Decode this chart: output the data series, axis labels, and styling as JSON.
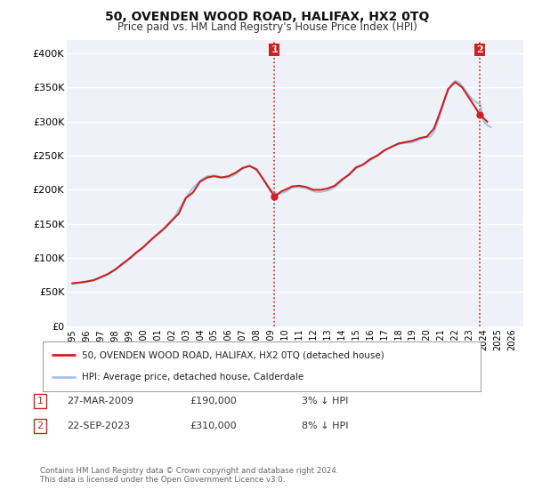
{
  "title": "50, OVENDEN WOOD ROAD, HALIFAX, HX2 0TQ",
  "subtitle": "Price paid vs. HM Land Registry's House Price Index (HPI)",
  "ylabel_ticks": [
    "£0",
    "£50K",
    "£100K",
    "£150K",
    "£200K",
    "£250K",
    "£300K",
    "£350K",
    "£400K"
  ],
  "ytick_values": [
    0,
    50000,
    100000,
    150000,
    200000,
    250000,
    300000,
    350000,
    400000
  ],
  "ylim": [
    0,
    420000
  ],
  "xlim_start": 1994.6,
  "xlim_end": 2026.8,
  "x_ticks": [
    1995,
    1996,
    1997,
    1998,
    1999,
    2000,
    2001,
    2002,
    2003,
    2004,
    2005,
    2006,
    2007,
    2008,
    2009,
    2010,
    2011,
    2012,
    2013,
    2014,
    2015,
    2016,
    2017,
    2018,
    2019,
    2020,
    2021,
    2022,
    2023,
    2024,
    2025,
    2026
  ],
  "legend_line1": "50, OVENDEN WOOD ROAD, HALIFAX, HX2 0TQ (detached house)",
  "legend_line2": "HPI: Average price, detached house, Calderdale",
  "marker1_date": "27-MAR-2009",
  "marker1_price": "£190,000",
  "marker1_hpi": "3% ↓ HPI",
  "marker2_date": "22-SEP-2023",
  "marker2_price": "£310,000",
  "marker2_hpi": "8% ↓ HPI",
  "footer_line1": "Contains HM Land Registry data © Crown copyright and database right 2024.",
  "footer_line2": "This data is licensed under the Open Government Licence v3.0.",
  "hpi_color": "#a8c4e0",
  "price_color": "#cc2222",
  "vline_color": "#cc2222",
  "bg_color": "#eef2f8",
  "grid_color": "#ffffff",
  "hpi_data_x": [
    1995.0,
    1995.25,
    1995.5,
    1995.75,
    1996.0,
    1996.25,
    1996.5,
    1996.75,
    1997.0,
    1997.25,
    1997.5,
    1997.75,
    1998.0,
    1998.25,
    1998.5,
    1998.75,
    1999.0,
    1999.25,
    1999.5,
    1999.75,
    2000.0,
    2000.25,
    2000.5,
    2000.75,
    2001.0,
    2001.25,
    2001.5,
    2001.75,
    2002.0,
    2002.25,
    2002.5,
    2002.75,
    2003.0,
    2003.25,
    2003.5,
    2003.75,
    2004.0,
    2004.25,
    2004.5,
    2004.75,
    2005.0,
    2005.25,
    2005.5,
    2005.75,
    2006.0,
    2006.25,
    2006.5,
    2006.75,
    2007.0,
    2007.25,
    2007.5,
    2007.75,
    2008.0,
    2008.25,
    2008.5,
    2008.75,
    2009.0,
    2009.25,
    2009.5,
    2009.75,
    2010.0,
    2010.25,
    2010.5,
    2010.75,
    2011.0,
    2011.25,
    2011.5,
    2011.75,
    2012.0,
    2012.25,
    2012.5,
    2012.75,
    2013.0,
    2013.25,
    2013.5,
    2013.75,
    2014.0,
    2014.25,
    2014.5,
    2014.75,
    2015.0,
    2015.25,
    2015.5,
    2015.75,
    2016.0,
    2016.25,
    2016.5,
    2016.75,
    2017.0,
    2017.25,
    2017.5,
    2017.75,
    2018.0,
    2018.25,
    2018.5,
    2018.75,
    2019.0,
    2019.25,
    2019.5,
    2019.75,
    2020.0,
    2020.25,
    2020.5,
    2020.75,
    2021.0,
    2021.25,
    2021.5,
    2021.75,
    2022.0,
    2022.25,
    2022.5,
    2022.75,
    2023.0,
    2023.25,
    2023.5,
    2023.75,
    2024.0,
    2024.25,
    2024.5
  ],
  "hpi_data_y": [
    62000,
    63000,
    63500,
    64000,
    65000,
    66000,
    67500,
    69000,
    71000,
    73500,
    76000,
    79000,
    82000,
    86000,
    90000,
    94000,
    98000,
    102000,
    107000,
    111000,
    115000,
    120000,
    125000,
    130000,
    134000,
    138000,
    143000,
    148000,
    154000,
    162000,
    171000,
    180000,
    188000,
    196000,
    203000,
    208000,
    213000,
    217000,
    220000,
    221000,
    221000,
    220000,
    219000,
    218000,
    218000,
    220000,
    223000,
    227000,
    231000,
    234000,
    235000,
    232000,
    228000,
    222000,
    215000,
    207000,
    200000,
    196000,
    194000,
    195000,
    197000,
    200000,
    203000,
    204000,
    204000,
    203000,
    202000,
    200000,
    198000,
    197000,
    197000,
    198000,
    199000,
    201000,
    204000,
    208000,
    213000,
    218000,
    223000,
    227000,
    231000,
    234000,
    237000,
    240000,
    243000,
    247000,
    251000,
    254000,
    257000,
    260000,
    263000,
    265000,
    267000,
    268000,
    269000,
    269000,
    270000,
    272000,
    274000,
    276000,
    277000,
    278000,
    285000,
    298000,
    315000,
    332000,
    345000,
    355000,
    360000,
    358000,
    352000,
    345000,
    338000,
    332000,
    328000,
    326000,
    300000,
    295000,
    292000
  ],
  "price_data_x": [
    1995.0,
    1995.5,
    1996.0,
    1996.5,
    1997.0,
    1997.5,
    1998.0,
    1998.5,
    1999.0,
    1999.5,
    2000.0,
    2000.5,
    2001.0,
    2001.5,
    2002.0,
    2002.5,
    2003.0,
    2003.5,
    2004.0,
    2004.5,
    2005.0,
    2005.5,
    2006.0,
    2006.5,
    2007.0,
    2007.5,
    2008.0,
    2009.25,
    2009.5,
    2009.75,
    2010.0,
    2010.5,
    2011.0,
    2011.5,
    2012.0,
    2012.5,
    2013.0,
    2013.5,
    2014.0,
    2014.5,
    2015.0,
    2015.5,
    2016.0,
    2016.5,
    2017.0,
    2017.5,
    2018.0,
    2018.5,
    2019.0,
    2019.5,
    2020.0,
    2020.5,
    2021.0,
    2021.5,
    2022.0,
    2022.5,
    2023.75,
    2024.0,
    2024.25
  ],
  "price_data_y": [
    63000,
    64000,
    65500,
    67500,
    72000,
    76500,
    83000,
    91000,
    99000,
    108000,
    116000,
    126000,
    135000,
    144000,
    155000,
    165000,
    188000,
    196000,
    212000,
    218000,
    220000,
    218000,
    220000,
    225000,
    232000,
    235000,
    230000,
    190000,
    194000,
    198000,
    200000,
    205000,
    206000,
    204000,
    200000,
    200000,
    202000,
    206000,
    215000,
    222000,
    233000,
    237000,
    245000,
    250000,
    258000,
    263000,
    268000,
    270000,
    272000,
    276000,
    278000,
    290000,
    318000,
    348000,
    358000,
    350000,
    310000,
    305000,
    300000
  ],
  "transaction1_x": 2009.23,
  "transaction1_y": 190000,
  "transaction2_x": 2023.72,
  "transaction2_y": 310000
}
